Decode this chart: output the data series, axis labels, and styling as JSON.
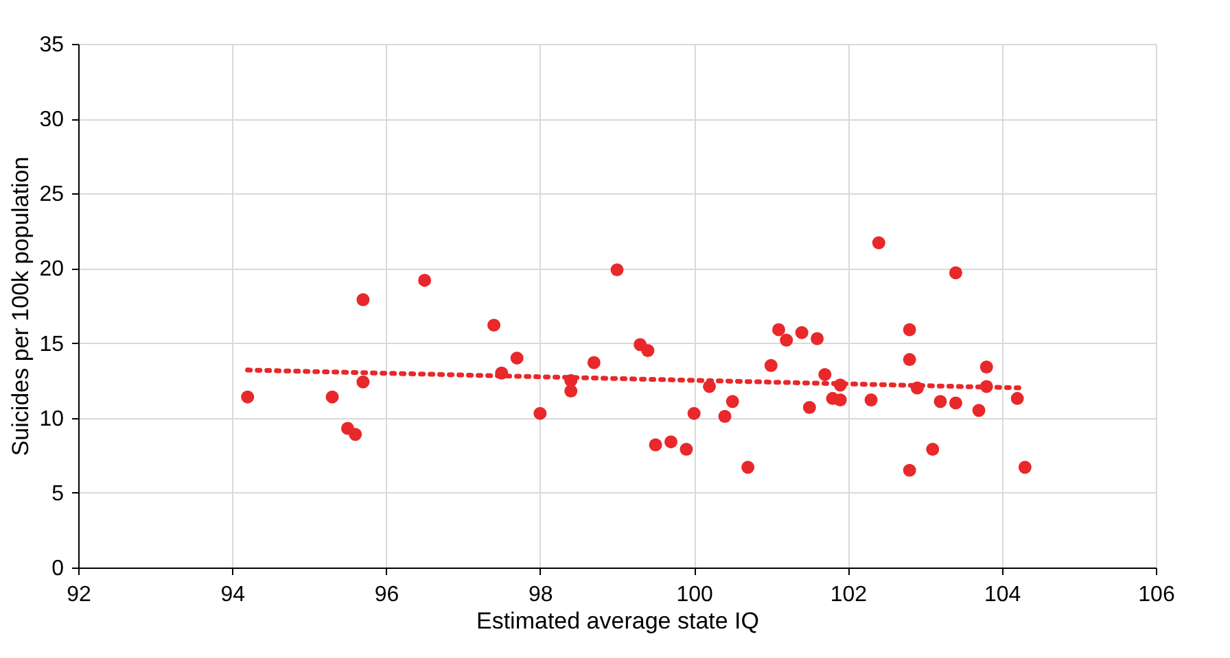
{
  "chart_data": {
    "type": "scatter",
    "xlabel": "Estimated average state IQ",
    "ylabel": "Suicides per 100k population",
    "xlim": [
      92,
      106
    ],
    "xticks": [
      92,
      94,
      96,
      98,
      100,
      102,
      104,
      106
    ],
    "ylim": [
      0,
      35
    ],
    "yticks": [
      0,
      5,
      10,
      15,
      20,
      25,
      30,
      35
    ],
    "grid": true,
    "marker": "circle",
    "series": [
      {
        "color": "#e8282a",
        "x": [
          94.2,
          95.3,
          95.5,
          95.6,
          95.7,
          95.7,
          96.5,
          97.4,
          97.5,
          97.7,
          98.0,
          98.4,
          98.4,
          98.7,
          99.0,
          99.3,
          99.4,
          99.5,
          99.7,
          99.9,
          100.0,
          100.2,
          100.4,
          100.5,
          100.7,
          101.0,
          101.1,
          101.2,
          101.4,
          101.5,
          101.6,
          101.7,
          101.8,
          101.9,
          101.9,
          102.3,
          102.4,
          102.8,
          102.8,
          102.8,
          102.9,
          103.1,
          103.2,
          103.4,
          103.4,
          103.7,
          103.8,
          103.8,
          104.2,
          104.3
        ],
        "values": [
          11.4,
          11.4,
          9.3,
          8.9,
          12.4,
          17.9,
          19.2,
          16.2,
          13.0,
          14.0,
          10.3,
          12.5,
          11.8,
          13.7,
          19.9,
          14.9,
          14.5,
          8.2,
          8.4,
          7.9,
          10.3,
          12.1,
          10.1,
          11.1,
          6.7,
          13.5,
          15.9,
          15.2,
          15.7,
          10.7,
          15.3,
          12.9,
          11.3,
          12.2,
          11.2,
          11.2,
          21.7,
          15.9,
          13.9,
          6.5,
          12.0,
          7.9,
          11.1,
          19.7,
          11.0,
          10.5,
          13.4,
          12.1,
          11.3,
          6.7
        ]
      },
      {
        "type": "line",
        "color": "#e8282a",
        "line_style": "dotted",
        "marker": "none",
        "x": [
          94.2,
          104.3
        ],
        "values": [
          13.2,
          12.0
        ]
      }
    ]
  }
}
